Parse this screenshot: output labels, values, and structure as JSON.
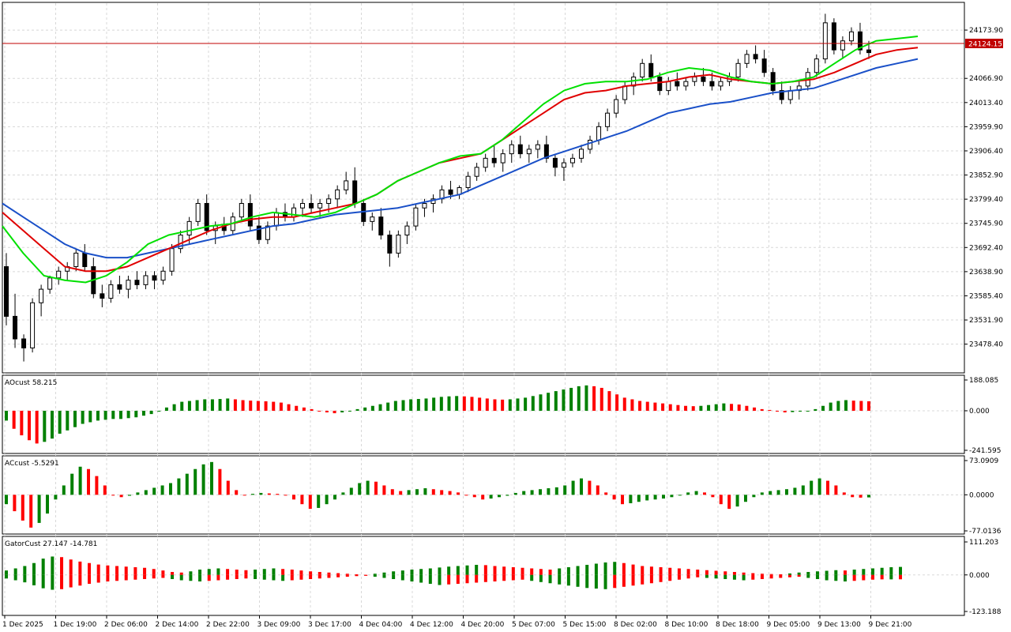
{
  "price_panel": {
    "current_price": "24124.15",
    "price_ticks": [
      "24173.90",
      "24066.90",
      "24013.40",
      "23959.90",
      "23906.40",
      "23852.90",
      "23799.40",
      "23745.90",
      "23692.40",
      "23638.90",
      "23585.40",
      "23531.90",
      "23478.40"
    ]
  },
  "ao_panel": {
    "title": "AOcust 58.215",
    "ticks": [
      "188.085",
      "0.000",
      "-241.595"
    ]
  },
  "ac_panel": {
    "title": "ACcust -5.5291",
    "ticks": [
      "73.0909",
      "0.0000",
      "-77.0136"
    ]
  },
  "gator_panel": {
    "title": "GatorCust 27.147 -14.781",
    "ticks": [
      "111.203",
      "0.000",
      "-123.188"
    ]
  },
  "time_axis": [
    "1 Dec 2025",
    "1 Dec 19:00",
    "2 Dec 06:00",
    "2 Dec 14:00",
    "2 Dec 22:00",
    "3 Dec 09:00",
    "3 Dec 17:00",
    "4 Dec 04:00",
    "4 Dec 12:00",
    "4 Dec 20:00",
    "5 Dec 07:00",
    "5 Dec 15:00",
    "8 Dec 02:00",
    "8 Dec 10:00",
    "8 Dec 18:00",
    "9 Dec 05:00",
    "9 Dec 13:00",
    "9 Dec 21:00"
  ],
  "colors": {
    "up_bar": "#008000",
    "down_bar": "#ff0000",
    "jaw": "#1a50c8",
    "teeth": "#e00000",
    "lips": "#00e000",
    "price_line": "#c00000",
    "grid": "#d8d8d8"
  },
  "chart_data": {
    "type": "candlestick",
    "price_ylim": [
      23420,
      24230
    ],
    "candles": [
      [
        23650,
        23680,
        23520,
        23540
      ],
      [
        23540,
        23590,
        23470,
        23490
      ],
      [
        23490,
        23500,
        23440,
        23470
      ],
      [
        23470,
        23580,
        23460,
        23570
      ],
      [
        23570,
        23610,
        23540,
        23600
      ],
      [
        23600,
        23630,
        23590,
        23625
      ],
      [
        23625,
        23650,
        23610,
        23640
      ],
      [
        23640,
        23660,
        23620,
        23650
      ],
      [
        23650,
        23690,
        23640,
        23680
      ],
      [
        23680,
        23700,
        23640,
        23650
      ],
      [
        23650,
        23670,
        23580,
        23590
      ],
      [
        23590,
        23610,
        23560,
        23580
      ],
      [
        23580,
        23620,
        23570,
        23610
      ],
      [
        23610,
        23630,
        23590,
        23600
      ],
      [
        23600,
        23630,
        23580,
        23620
      ],
      [
        23620,
        23640,
        23600,
        23610
      ],
      [
        23610,
        23640,
        23600,
        23630
      ],
      [
        23630,
        23640,
        23600,
        23620
      ],
      [
        23620,
        23650,
        23610,
        23640
      ],
      [
        23640,
        23700,
        23630,
        23690
      ],
      [
        23690,
        23730,
        23680,
        23720
      ],
      [
        23720,
        23760,
        23700,
        23750
      ],
      [
        23750,
        23800,
        23740,
        23790
      ],
      [
        23790,
        23810,
        23720,
        23730
      ],
      [
        23730,
        23750,
        23700,
        23740
      ],
      [
        23740,
        23760,
        23720,
        23730
      ],
      [
        23730,
        23770,
        23720,
        23760
      ],
      [
        23760,
        23800,
        23750,
        23790
      ],
      [
        23790,
        23810,
        23730,
        23740
      ],
      [
        23740,
        23760,
        23700,
        23710
      ],
      [
        23710,
        23750,
        23700,
        23740
      ],
      [
        23740,
        23780,
        23730,
        23770
      ],
      [
        23770,
        23790,
        23750,
        23760
      ],
      [
        23760,
        23790,
        23750,
        23780
      ],
      [
        23780,
        23800,
        23760,
        23790
      ],
      [
        23790,
        23810,
        23770,
        23780
      ],
      [
        23780,
        23800,
        23760,
        23790
      ],
      [
        23790,
        23810,
        23770,
        23800
      ],
      [
        23800,
        23830,
        23780,
        23820
      ],
      [
        23820,
        23860,
        23810,
        23840
      ],
      [
        23840,
        23870,
        23780,
        23790
      ],
      [
        23790,
        23800,
        23740,
        23750
      ],
      [
        23750,
        23770,
        23730,
        23760
      ],
      [
        23760,
        23780,
        23710,
        23720
      ],
      [
        23720,
        23730,
        23650,
        23680
      ],
      [
        23680,
        23730,
        23670,
        23720
      ],
      [
        23720,
        23750,
        23700,
        23740
      ],
      [
        23740,
        23790,
        23730,
        23780
      ],
      [
        23780,
        23800,
        23760,
        23790
      ],
      [
        23790,
        23810,
        23770,
        23800
      ],
      [
        23800,
        23830,
        23790,
        23820
      ],
      [
        23820,
        23840,
        23800,
        23810
      ],
      [
        23810,
        23830,
        23800,
        23825
      ],
      [
        23825,
        23860,
        23815,
        23850
      ],
      [
        23850,
        23880,
        23840,
        23870
      ],
      [
        23870,
        23900,
        23860,
        23890
      ],
      [
        23890,
        23920,
        23870,
        23880
      ],
      [
        23880,
        23910,
        23860,
        23900
      ],
      [
        23900,
        23930,
        23880,
        23920
      ],
      [
        23920,
        23940,
        23890,
        23900
      ],
      [
        23900,
        23920,
        23880,
        23910
      ],
      [
        23910,
        23930,
        23890,
        23920
      ],
      [
        23920,
        23940,
        23880,
        23890
      ],
      [
        23890,
        23900,
        23850,
        23870
      ],
      [
        23870,
        23890,
        23840,
        23880
      ],
      [
        23880,
        23900,
        23870,
        23890
      ],
      [
        23890,
        23920,
        23880,
        23910
      ],
      [
        23910,
        23940,
        23900,
        23930
      ],
      [
        23930,
        23970,
        23920,
        23960
      ],
      [
        23960,
        24000,
        23950,
        23990
      ],
      [
        23990,
        24030,
        23980,
        24020
      ],
      [
        24020,
        24060,
        24010,
        24050
      ],
      [
        24050,
        24080,
        24030,
        24070
      ],
      [
        24070,
        24110,
        24060,
        24100
      ],
      [
        24100,
        24120,
        24060,
        24070
      ],
      [
        24070,
        24080,
        24030,
        24040
      ],
      [
        24040,
        24070,
        24030,
        24060
      ],
      [
        24060,
        24080,
        24040,
        24050
      ],
      [
        24050,
        24070,
        24040,
        24060
      ],
      [
        24060,
        24080,
        24050,
        24070
      ],
      [
        24070,
        24090,
        24050,
        24060
      ],
      [
        24060,
        24080,
        24040,
        24050
      ],
      [
        24050,
        24070,
        24040,
        24060
      ],
      [
        24060,
        24080,
        24050,
        24070
      ],
      [
        24070,
        24110,
        24060,
        24100
      ],
      [
        24100,
        24130,
        24090,
        24120
      ],
      [
        24120,
        24140,
        24100,
        24110
      ],
      [
        24110,
        24130,
        24070,
        24080
      ],
      [
        24080,
        24090,
        24030,
        24040
      ],
      [
        24040,
        24060,
        24010,
        24020
      ],
      [
        24020,
        24050,
        24010,
        24040
      ],
      [
        24040,
        24060,
        24020,
        24050
      ],
      [
        24050,
        24090,
        24040,
        24080
      ],
      [
        24080,
        24120,
        24070,
        24110
      ],
      [
        24110,
        24210,
        24100,
        24190
      ],
      [
        24190,
        24200,
        24120,
        24130
      ],
      [
        24130,
        24160,
        24110,
        24150
      ],
      [
        24150,
        24180,
        24140,
        24170
      ],
      [
        24170,
        24190,
        24120,
        24130
      ],
      [
        24130,
        24150,
        24110,
        24124
      ]
    ],
    "jaw": [
      23790,
      23760,
      23730,
      23700,
      23680,
      23670,
      23670,
      23680,
      23690,
      23700,
      23710,
      23720,
      23730,
      23740,
      23745,
      23755,
      23765,
      23770,
      23775,
      23780,
      23790,
      23800,
      23810,
      23830,
      23850,
      23870,
      23890,
      23905,
      23920,
      23935,
      23950,
      23970,
      23990,
      24000,
      24010,
      24015,
      24025,
      24035,
      24040,
      24045,
      24060,
      24075,
      24090,
      24100,
      24110
    ],
    "teeth": [
      23770,
      23730,
      23690,
      23650,
      23640,
      23640,
      23650,
      23670,
      23690,
      23710,
      23730,
      23745,
      23755,
      23760,
      23760,
      23770,
      23780,
      23790,
      23810,
      23840,
      23860,
      23880,
      23890,
      23900,
      23930,
      23960,
      23990,
      24020,
      24035,
      24040,
      24050,
      24055,
      24060,
      24070,
      24075,
      24065,
      24060,
      24055,
      24060,
      24065,
      24080,
      24100,
      24120,
      24130,
      24135
    ],
    "lips": [
      23740,
      23680,
      23630,
      23620,
      23615,
      23630,
      23660,
      23700,
      23720,
      23730,
      23740,
      23745,
      23760,
      23770,
      23765,
      23760,
      23770,
      23790,
      23810,
      23840,
      23860,
      23880,
      23895,
      23900,
      23930,
      23970,
      24010,
      24040,
      24055,
      24060,
      24060,
      24065,
      24080,
      24090,
      24085,
      24070,
      24060,
      24055,
      24060,
      24070,
      24100,
      24130,
      24150,
      24155,
      24160
    ],
    "ao": [
      -60,
      -110,
      -150,
      -180,
      -200,
      -190,
      -170,
      -140,
      -120,
      -100,
      -80,
      -70,
      -60,
      -55,
      -50,
      -50,
      -45,
      -40,
      -30,
      -20,
      0,
      20,
      40,
      55,
      60,
      65,
      70,
      70,
      72,
      75,
      70,
      65,
      62,
      60,
      58,
      55,
      50,
      40,
      30,
      20,
      10,
      0,
      -10,
      -15,
      -10,
      0,
      10,
      20,
      30,
      40,
      50,
      60,
      65,
      70,
      72,
      75,
      80,
      85,
      88,
      90,
      88,
      85,
      80,
      75,
      70,
      68,
      70,
      75,
      80,
      90,
      100,
      110,
      120,
      130,
      140,
      150,
      155,
      150,
      140,
      120,
      100,
      80,
      70,
      60,
      55,
      50,
      45,
      40,
      35,
      30,
      28,
      30,
      35,
      40,
      45,
      42,
      38,
      30,
      20,
      10,
      5,
      -5,
      -10,
      -8,
      -5,
      0,
      10,
      30,
      50,
      60,
      65,
      62,
      60,
      58
    ],
    "ac": [
      -20,
      -35,
      -55,
      -70,
      -60,
      -40,
      -10,
      20,
      45,
      60,
      55,
      40,
      20,
      0,
      -5,
      -2,
      5,
      10,
      15,
      20,
      25,
      35,
      45,
      55,
      65,
      70,
      55,
      30,
      10,
      0,
      2,
      4,
      3,
      2,
      0,
      -10,
      -20,
      -30,
      -28,
      -20,
      -10,
      5,
      15,
      25,
      30,
      28,
      20,
      12,
      8,
      10,
      12,
      14,
      12,
      10,
      8,
      5,
      0,
      -5,
      -10,
      -8,
      -5,
      -2,
      4,
      8,
      10,
      12,
      14,
      16,
      20,
      30,
      35,
      30,
      20,
      5,
      -10,
      -20,
      -18,
      -15,
      -12,
      -10,
      -8,
      -5,
      0,
      5,
      8,
      5,
      -5,
      -20,
      -30,
      -25,
      -15,
      -5,
      5,
      8,
      10,
      12,
      15,
      20,
      30,
      35,
      30,
      20,
      5,
      -5,
      -6,
      -5.5
    ],
    "gator_up": [
      15,
      22,
      30,
      40,
      55,
      62,
      60,
      52,
      45,
      40,
      35,
      32,
      30,
      28,
      26,
      24,
      20,
      15,
      10,
      8,
      12,
      18,
      20,
      22,
      20,
      18,
      16,
      18,
      20,
      22,
      20,
      18,
      15,
      12,
      10,
      8,
      6,
      4,
      2,
      0,
      4,
      8,
      12,
      15,
      18,
      20,
      22,
      25,
      28,
      30,
      32,
      34,
      33,
      30,
      28,
      26,
      24,
      22,
      20,
      18,
      22,
      26,
      30,
      34,
      38,
      42,
      44,
      40,
      35,
      30,
      28,
      26,
      24,
      22,
      20,
      18,
      16,
      14,
      12,
      10,
      8,
      6,
      4,
      3,
      2,
      5,
      8,
      10,
      12,
      14,
      16,
      15,
      18,
      20,
      22,
      24,
      26,
      27
    ],
    "gator_down": [
      -12,
      -18,
      -25,
      -35,
      -45,
      -50,
      -48,
      -42,
      -36,
      -30,
      -26,
      -22,
      -20,
      -18,
      -16,
      -14,
      -12,
      -10,
      -14,
      -18,
      -20,
      -22,
      -20,
      -18,
      -16,
      -14,
      -12,
      -14,
      -16,
      -18,
      -20,
      -18,
      -16,
      -14,
      -12,
      -10,
      -8,
      -6,
      -4,
      -2,
      -6,
      -10,
      -14,
      -18,
      -22,
      -26,
      -30,
      -34,
      -32,
      -30,
      -28,
      -26,
      -24,
      -22,
      -20,
      -18,
      -16,
      -20,
      -24,
      -28,
      -32,
      -36,
      -40,
      -44,
      -46,
      -48,
      -44,
      -40,
      -36,
      -32,
      -28,
      -24,
      -20,
      -16,
      -12,
      -8,
      -10,
      -12,
      -14,
      -16,
      -18,
      -16,
      -14,
      -12,
      -10,
      -8,
      -6,
      -10,
      -14,
      -18,
      -20,
      -22,
      -20,
      -18,
      -16,
      -15,
      -15,
      -14.781
    ]
  }
}
